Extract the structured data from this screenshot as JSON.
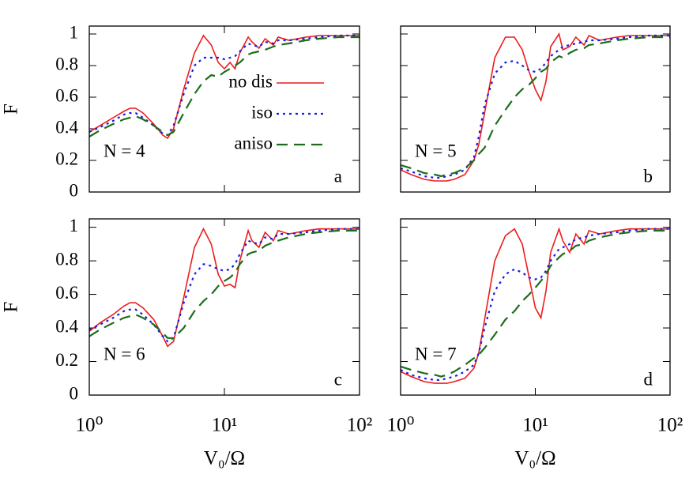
{
  "chart_data": [
    {
      "type": "line",
      "ylabel": "F",
      "label": "N = 4",
      "panel": "a",
      "log_x": true,
      "legend": true,
      "show_xtick_labels": false,
      "show_ytick_labels": true,
      "xlim": [
        1,
        100
      ],
      "ylim": [
        0,
        1.05
      ],
      "xticks": [
        1,
        10,
        100
      ],
      "yticks": [
        0,
        0.2,
        0.4,
        0.6,
        0.8,
        1
      ],
      "x": [
        1,
        1.2,
        1.5,
        1.8,
        2,
        2.2,
        2.5,
        3,
        3.5,
        3.8,
        4.2,
        5,
        6,
        7,
        8,
        9,
        10,
        11,
        12,
        13,
        15,
        16,
        18,
        20,
        23,
        25,
        30,
        40,
        50,
        70,
        100
      ],
      "series": [
        {
          "name": "no dis",
          "color": "#ee1c1c",
          "style": "solid",
          "values": [
            0.38,
            0.42,
            0.47,
            0.51,
            0.53,
            0.53,
            0.5,
            0.43,
            0.36,
            0.34,
            0.4,
            0.65,
            0.88,
            0.99,
            0.93,
            0.82,
            0.78,
            0.82,
            0.78,
            0.88,
            0.98,
            0.95,
            0.91,
            0.97,
            0.93,
            0.98,
            0.96,
            0.98,
            0.99,
            0.99,
            0.99
          ]
        },
        {
          "name": "iso",
          "color": "#1a1ae6",
          "style": "dotted",
          "values": [
            0.38,
            0.41,
            0.45,
            0.49,
            0.5,
            0.5,
            0.47,
            0.42,
            0.37,
            0.36,
            0.42,
            0.62,
            0.8,
            0.85,
            0.85,
            0.85,
            0.84,
            0.85,
            0.86,
            0.89,
            0.94,
            0.93,
            0.92,
            0.95,
            0.94,
            0.96,
            0.96,
            0.97,
            0.98,
            0.99,
            0.99
          ]
        },
        {
          "name": "aniso",
          "color": "#1b6e1b",
          "style": "dashed",
          "values": [
            0.35,
            0.39,
            0.43,
            0.46,
            0.47,
            0.48,
            0.46,
            0.42,
            0.38,
            0.36,
            0.38,
            0.5,
            0.62,
            0.7,
            0.74,
            0.73,
            0.76,
            0.78,
            0.8,
            0.82,
            0.87,
            0.88,
            0.89,
            0.9,
            0.92,
            0.93,
            0.94,
            0.96,
            0.97,
            0.98,
            0.98
          ]
        }
      ]
    },
    {
      "type": "line",
      "label": "N = 5",
      "panel": "b",
      "log_x": true,
      "legend": false,
      "show_xtick_labels": false,
      "show_ytick_labels": false,
      "xlim": [
        1,
        100
      ],
      "ylim": [
        0,
        1.05
      ],
      "xticks": [
        1,
        10,
        100
      ],
      "yticks": [
        0,
        0.2,
        0.4,
        0.6,
        0.8,
        1
      ],
      "x": [
        1,
        1.2,
        1.5,
        1.8,
        2,
        2.2,
        2.5,
        3,
        3.5,
        3.8,
        4.2,
        5,
        6,
        7,
        8,
        9,
        10,
        11,
        12,
        13,
        15,
        16,
        18,
        20,
        23,
        25,
        30,
        40,
        50,
        70,
        100
      ],
      "series": [
        {
          "color": "#ee1c1c",
          "style": "solid",
          "values": [
            0.14,
            0.11,
            0.08,
            0.07,
            0.07,
            0.07,
            0.08,
            0.11,
            0.2,
            0.3,
            0.5,
            0.85,
            0.98,
            0.98,
            0.9,
            0.76,
            0.65,
            0.58,
            0.7,
            0.92,
            1.0,
            0.9,
            0.92,
            0.98,
            0.93,
            0.99,
            0.96,
            0.98,
            0.99,
            0.99,
            0.99
          ]
        },
        {
          "color": "#1a1ae6",
          "style": "dotted",
          "values": [
            0.15,
            0.13,
            0.1,
            0.09,
            0.09,
            0.1,
            0.11,
            0.14,
            0.22,
            0.35,
            0.55,
            0.75,
            0.82,
            0.83,
            0.8,
            0.77,
            0.76,
            0.78,
            0.82,
            0.86,
            0.9,
            0.92,
            0.93,
            0.94,
            0.95,
            0.96,
            0.96,
            0.97,
            0.98,
            0.99,
            0.99
          ]
        },
        {
          "color": "#1b6e1b",
          "style": "dashed",
          "values": [
            0.17,
            0.15,
            0.12,
            0.11,
            0.1,
            0.11,
            0.12,
            0.15,
            0.2,
            0.24,
            0.28,
            0.42,
            0.52,
            0.6,
            0.65,
            0.68,
            0.72,
            0.76,
            0.78,
            0.82,
            0.86,
            0.85,
            0.88,
            0.9,
            0.91,
            0.93,
            0.94,
            0.96,
            0.97,
            0.98,
            0.98
          ]
        }
      ]
    },
    {
      "type": "line",
      "ylabel": "F",
      "xlabel": "V₀/Ω",
      "label": "N = 6",
      "panel": "c",
      "log_x": true,
      "legend": false,
      "show_xtick_labels": true,
      "show_ytick_labels": true,
      "xlim": [
        1,
        100
      ],
      "ylim": [
        0,
        1.05
      ],
      "xticks": [
        {
          "value": 1,
          "label": "10⁰"
        },
        {
          "value": 10,
          "label": "10¹"
        },
        {
          "value": 100,
          "label": "10²"
        }
      ],
      "yticks": [
        0,
        0.2,
        0.4,
        0.6,
        0.8,
        1
      ],
      "x": [
        1,
        1.2,
        1.5,
        1.8,
        2,
        2.2,
        2.5,
        3,
        3.5,
        3.8,
        4.2,
        5,
        6,
        7,
        8,
        9,
        10,
        11,
        12,
        13,
        15,
        16,
        18,
        20,
        23,
        25,
        30,
        40,
        50,
        70,
        100
      ],
      "series": [
        {
          "color": "#ee1c1c",
          "style": "solid",
          "values": [
            0.38,
            0.43,
            0.48,
            0.53,
            0.55,
            0.55,
            0.52,
            0.45,
            0.35,
            0.29,
            0.32,
            0.58,
            0.88,
            0.99,
            0.9,
            0.72,
            0.65,
            0.66,
            0.64,
            0.8,
            0.98,
            0.92,
            0.88,
            0.97,
            0.92,
            0.98,
            0.96,
            0.98,
            0.99,
            0.99,
            0.99
          ]
        },
        {
          "color": "#1a1ae6",
          "style": "dotted",
          "values": [
            0.39,
            0.42,
            0.46,
            0.5,
            0.51,
            0.51,
            0.48,
            0.42,
            0.35,
            0.32,
            0.34,
            0.55,
            0.72,
            0.78,
            0.77,
            0.75,
            0.74,
            0.75,
            0.78,
            0.84,
            0.92,
            0.91,
            0.9,
            0.94,
            0.93,
            0.96,
            0.96,
            0.97,
            0.98,
            0.99,
            0.99
          ]
        },
        {
          "color": "#1b6e1b",
          "style": "dashed",
          "values": [
            0.35,
            0.39,
            0.43,
            0.46,
            0.47,
            0.48,
            0.46,
            0.42,
            0.37,
            0.34,
            0.34,
            0.4,
            0.5,
            0.56,
            0.6,
            0.65,
            0.68,
            0.7,
            0.73,
            0.78,
            0.84,
            0.85,
            0.86,
            0.89,
            0.91,
            0.92,
            0.94,
            0.96,
            0.97,
            0.98,
            0.98
          ]
        }
      ]
    },
    {
      "type": "line",
      "xlabel": "V₀/Ω",
      "label": "N = 7",
      "panel": "d",
      "log_x": true,
      "legend": false,
      "show_xtick_labels": true,
      "show_ytick_labels": false,
      "xlim": [
        1,
        100
      ],
      "ylim": [
        0,
        1.05
      ],
      "xticks": [
        {
          "value": 1,
          "label": "10⁰"
        },
        {
          "value": 10,
          "label": "10¹"
        },
        {
          "value": 100,
          "label": "10²"
        }
      ],
      "yticks": [
        0,
        0.2,
        0.4,
        0.6,
        0.8,
        1
      ],
      "x": [
        1,
        1.2,
        1.5,
        1.8,
        2,
        2.2,
        2.5,
        3,
        3.5,
        3.8,
        4.2,
        5,
        6,
        7,
        8,
        9,
        10,
        11,
        12,
        13,
        15,
        16,
        18,
        20,
        23,
        25,
        30,
        40,
        50,
        70,
        100
      ],
      "series": [
        {
          "color": "#ee1c1c",
          "style": "solid",
          "values": [
            0.14,
            0.11,
            0.08,
            0.07,
            0.07,
            0.07,
            0.08,
            0.1,
            0.16,
            0.25,
            0.45,
            0.8,
            0.95,
            0.99,
            0.9,
            0.7,
            0.52,
            0.46,
            0.62,
            0.85,
            0.99,
            0.92,
            0.85,
            0.96,
            0.9,
            0.98,
            0.96,
            0.98,
            0.99,
            0.99,
            0.99
          ]
        },
        {
          "color": "#1a1ae6",
          "style": "dotted",
          "values": [
            0.15,
            0.12,
            0.1,
            0.09,
            0.09,
            0.1,
            0.11,
            0.14,
            0.18,
            0.25,
            0.4,
            0.62,
            0.72,
            0.75,
            0.73,
            0.7,
            0.69,
            0.7,
            0.74,
            0.8,
            0.87,
            0.88,
            0.9,
            0.93,
            0.94,
            0.95,
            0.96,
            0.97,
            0.98,
            0.99,
            0.99
          ]
        },
        {
          "color": "#1b6e1b",
          "style": "dashed",
          "values": [
            0.17,
            0.15,
            0.13,
            0.12,
            0.11,
            0.12,
            0.14,
            0.18,
            0.22,
            0.24,
            0.28,
            0.36,
            0.45,
            0.5,
            0.56,
            0.6,
            0.64,
            0.68,
            0.72,
            0.77,
            0.82,
            0.84,
            0.86,
            0.89,
            0.9,
            0.92,
            0.94,
            0.96,
            0.97,
            0.98,
            0.98
          ]
        }
      ]
    }
  ]
}
